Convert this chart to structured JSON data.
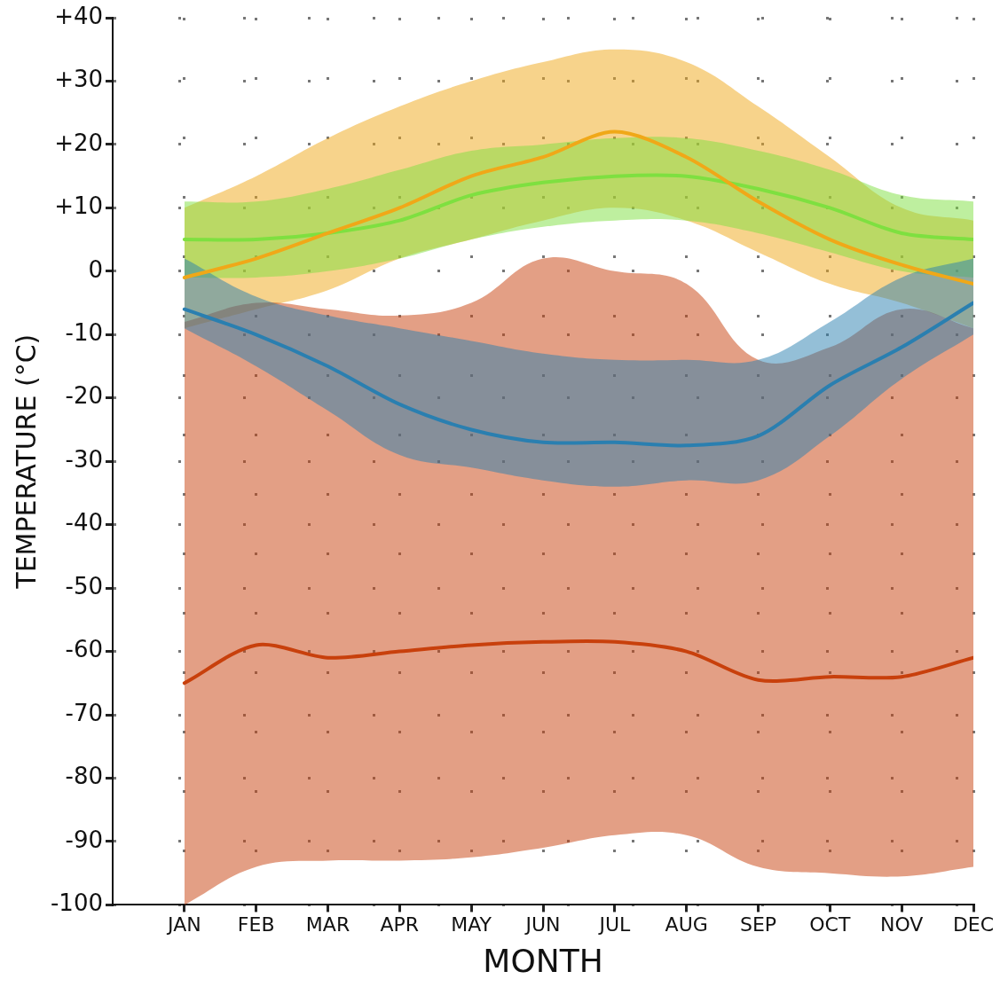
{
  "chart_data": {
    "type": "line",
    "xlabel": "MONTH",
    "ylabel": "TEMPERATURE (°C)",
    "categories": [
      "JAN",
      "FEB",
      "MAR",
      "APR",
      "MAY",
      "JUN",
      "JUL",
      "AUG",
      "SEP",
      "OCT",
      "NOV",
      "DEC"
    ],
    "ylim": [
      -100,
      40
    ],
    "yticks": [
      {
        "value": 40,
        "label": "+40"
      },
      {
        "value": 30,
        "label": "+30"
      },
      {
        "value": 20,
        "label": "+20"
      },
      {
        "value": 10,
        "label": "+10"
      },
      0,
      -10,
      -20,
      -30,
      -40,
      -50,
      -60,
      -70,
      -80,
      -90,
      -100
    ],
    "grid": true,
    "legend": false,
    "line_style": "solid",
    "marker": "none",
    "series": [
      {
        "color": "#f0a818",
        "values": [
          -1,
          2,
          6,
          10,
          15,
          18,
          22,
          18,
          11,
          5,
          1,
          -2
        ],
        "upper": [
          10,
          15,
          21,
          26,
          30,
          33,
          35,
          33,
          26,
          18,
          10,
          8
        ],
        "lower": [
          -9,
          -6,
          -3,
          2,
          5,
          8,
          10,
          8,
          3,
          -2,
          -5,
          -9
        ]
      },
      {
        "color": "#7ee040",
        "values": [
          5,
          5,
          6,
          8,
          12,
          14,
          15,
          15,
          13,
          10,
          6,
          5
        ],
        "upper": [
          11,
          11,
          13,
          16,
          19,
          20,
          21,
          21,
          19,
          16,
          12,
          11
        ],
        "lower": [
          -1,
          -1,
          0,
          2,
          5,
          7,
          8,
          8,
          6,
          3,
          0,
          -1
        ]
      },
      {
        "color": "#c8400c",
        "values": [
          -65,
          -59,
          -61,
          -60,
          -59,
          -58.5,
          -58.5,
          -60,
          -64.5,
          -64,
          -64,
          -61
        ],
        "upper": [
          -8,
          -5,
          -6,
          -7,
          -5,
          2,
          0,
          -2,
          -14,
          -12,
          -6,
          -9
        ],
        "lower": [
          -100,
          -94,
          -93,
          -93,
          -92.5,
          -91,
          -89,
          -89,
          -94,
          -95,
          -95.5,
          -94
        ]
      },
      {
        "color": "#2a7fb0",
        "values": [
          -6,
          -10,
          -15,
          -21,
          -25,
          -27,
          -27,
          -27.5,
          -26,
          -18,
          -12,
          -5
        ],
        "upper": [
          2,
          -4,
          -7,
          -9,
          -11,
          -13,
          -14,
          -14,
          -14,
          -8,
          -1,
          2
        ],
        "lower": [
          -9,
          -15,
          -22,
          -29,
          -31,
          -33,
          -34,
          -33,
          -33,
          -26,
          -17,
          -10
        ]
      }
    ]
  }
}
